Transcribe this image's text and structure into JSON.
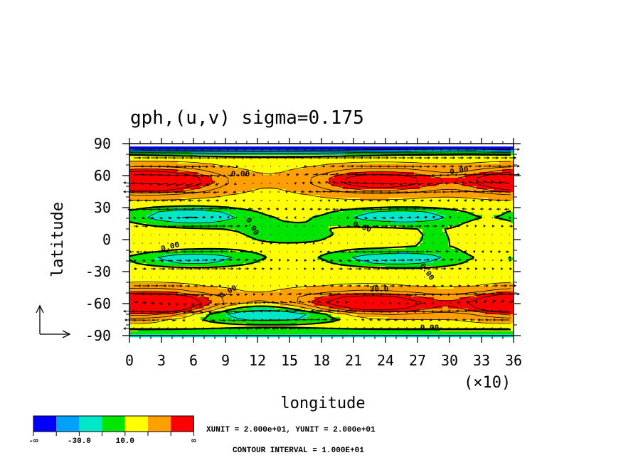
{
  "chart_data": {
    "type": "heatmap",
    "title": "gph,(u,v)  sigma=0.175",
    "xlabel": "longitude",
    "ylabel": "latitude",
    "x_multiplier_label": "(×10)",
    "xlim": [
      0,
      36
    ],
    "ylim": [
      -90,
      90
    ],
    "x_ticks": [
      "0",
      "3",
      "6",
      "9",
      "12",
      "15",
      "18",
      "21",
      "24",
      "27",
      "30",
      "33",
      "36"
    ],
    "y_ticks": [
      "90",
      "60",
      "30",
      "0",
      "-30",
      "-60",
      "-90"
    ],
    "colorbar": {
      "colors": [
        "#0000ff",
        "#00a0ff",
        "#00e6c8",
        "#00e600",
        "#ffff00",
        "#ffa000",
        "#ff0000"
      ],
      "labels": [
        "-∞",
        "-30.0",
        "10.0",
        "∞"
      ]
    },
    "contour_labels": [
      "0.00",
      "0.00",
      "0.00",
      "0.00",
      "0.00",
      "0.00",
      "0.00",
      "0.00",
      "30.0"
    ],
    "unit_text": "XUNIT = 2.000e+01, YUNIT = 2.000e+01",
    "interval_text": "CONTOUR INTERVAL = 1.000E+01",
    "centers": [
      {
        "lon": 25,
        "lat": 55,
        "amp": 48,
        "sx": 4,
        "sy": 7
      },
      {
        "lon": 235,
        "lat": 55,
        "amp": 48,
        "sx": 4,
        "sy": 7
      },
      {
        "lon": 365,
        "lat": 55,
        "amp": 28,
        "sx": 3.5,
        "sy": 7
      },
      {
        "lon": 25,
        "lat": -60,
        "amp": 50,
        "sx": 4,
        "sy": 7
      },
      {
        "lon": 225,
        "lat": -60,
        "amp": 55,
        "sx": 4.5,
        "sy": 7
      },
      {
        "lon": 365,
        "lat": -60,
        "amp": 35,
        "sx": 3.5,
        "sy": 7
      },
      {
        "lon": 140,
        "lat": 88,
        "amp": -50,
        "sx": 12,
        "sy": 5
      },
      {
        "lon": 330,
        "lat": 90,
        "amp": -25,
        "sx": 6,
        "sy": 5
      },
      {
        "lon": 40,
        "lat": 95,
        "amp": -25,
        "sx": 6,
        "sy": 5
      },
      {
        "lon": 55,
        "lat": 22,
        "amp": -28,
        "sx": 4,
        "sy": 6
      },
      {
        "lon": 250,
        "lat": 22,
        "amp": -26,
        "sx": 4,
        "sy": 5
      },
      {
        "lon": 60,
        "lat": -18,
        "amp": -26,
        "sx": 4,
        "sy": 5
      },
      {
        "lon": 245,
        "lat": -18,
        "amp": -26,
        "sx": 4,
        "sy": 5
      },
      {
        "lon": 135,
        "lat": -70,
        "amp": -30,
        "sx": 6,
        "sy": 6
      },
      {
        "lon": 150,
        "lat": 5,
        "amp": -10,
        "sx": 6,
        "sy": 12
      },
      {
        "lon": 290,
        "lat": 0,
        "amp": -8,
        "sx": 3,
        "sy": 18
      }
    ]
  }
}
